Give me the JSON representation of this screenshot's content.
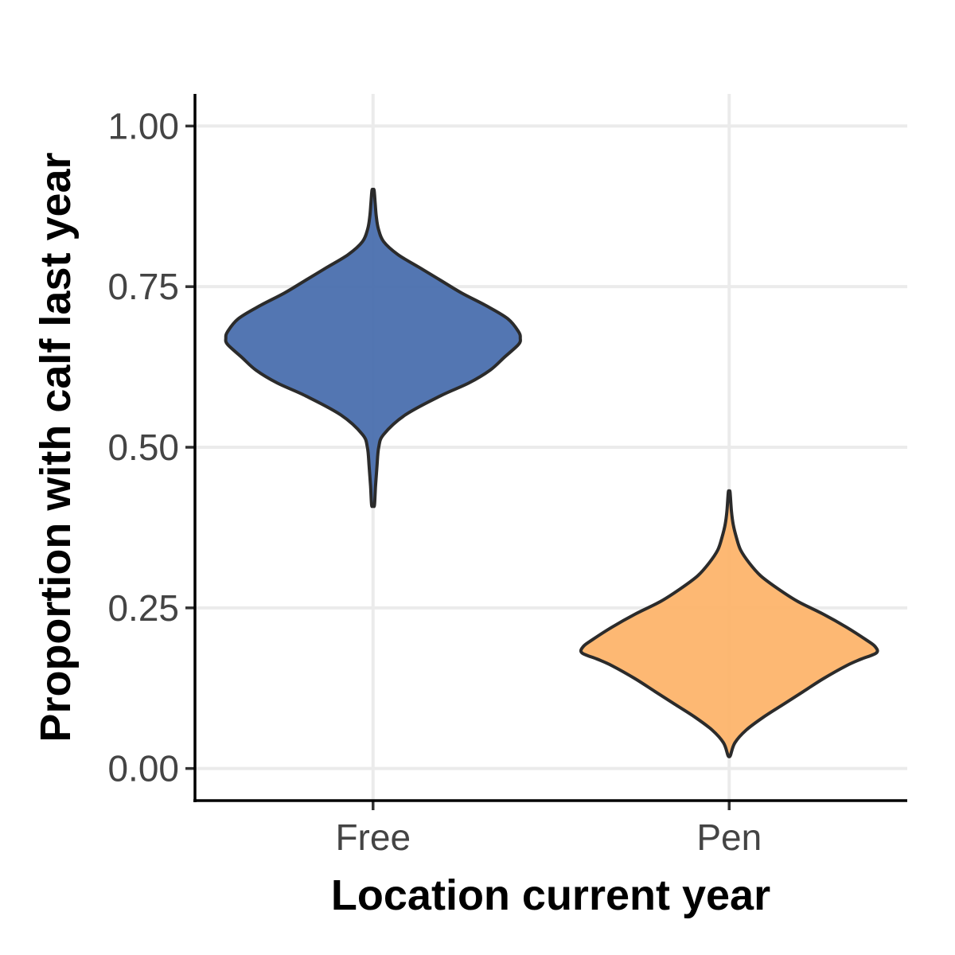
{
  "chart_data": {
    "type": "violin",
    "title": "",
    "xlabel": "Location current year",
    "ylabel": "Proportion with calf last year",
    "ylim": [
      -0.05,
      1.05
    ],
    "yticks": [
      0.0,
      0.25,
      0.5,
      0.75,
      1.0
    ],
    "ytick_labels": [
      "0.00",
      "0.25",
      "0.50",
      "0.75",
      "1.00"
    ],
    "categories": [
      "Free",
      "Pen"
    ],
    "grid": true,
    "legend": "none",
    "series": [
      {
        "category": "Free",
        "color": "#4a6fae",
        "min": 0.41,
        "max": 0.9,
        "mode": 0.67,
        "density": [
          [
            0.41,
            0.004
          ],
          [
            0.44,
            0.007
          ],
          [
            0.47,
            0.011
          ],
          [
            0.5,
            0.016
          ],
          [
            0.52,
            0.03
          ],
          [
            0.55,
            0.09
          ],
          [
            0.58,
            0.19
          ],
          [
            0.6,
            0.27
          ],
          [
            0.62,
            0.33
          ],
          [
            0.64,
            0.37
          ],
          [
            0.66,
            0.41
          ],
          [
            0.67,
            0.415
          ],
          [
            0.68,
            0.41
          ],
          [
            0.7,
            0.38
          ],
          [
            0.72,
            0.32
          ],
          [
            0.74,
            0.25
          ],
          [
            0.76,
            0.19
          ],
          [
            0.78,
            0.13
          ],
          [
            0.8,
            0.07
          ],
          [
            0.82,
            0.03
          ],
          [
            0.84,
            0.015
          ],
          [
            0.86,
            0.009
          ],
          [
            0.88,
            0.006
          ],
          [
            0.9,
            0.003
          ]
        ]
      },
      {
        "category": "Pen",
        "color": "#fdb46c",
        "min": 0.02,
        "max": 0.43,
        "mode": 0.18,
        "density": [
          [
            0.02,
            0.004
          ],
          [
            0.04,
            0.02
          ],
          [
            0.06,
            0.06
          ],
          [
            0.08,
            0.12
          ],
          [
            0.1,
            0.19
          ],
          [
            0.12,
            0.26
          ],
          [
            0.14,
            0.33
          ],
          [
            0.16,
            0.41
          ],
          [
            0.17,
            0.46
          ],
          [
            0.18,
            0.515
          ],
          [
            0.19,
            0.51
          ],
          [
            0.2,
            0.48
          ],
          [
            0.22,
            0.41
          ],
          [
            0.24,
            0.33
          ],
          [
            0.26,
            0.24
          ],
          [
            0.28,
            0.17
          ],
          [
            0.3,
            0.11
          ],
          [
            0.32,
            0.07
          ],
          [
            0.34,
            0.04
          ],
          [
            0.36,
            0.025
          ],
          [
            0.38,
            0.014
          ],
          [
            0.4,
            0.008
          ],
          [
            0.43,
            0.003
          ]
        ]
      }
    ]
  }
}
